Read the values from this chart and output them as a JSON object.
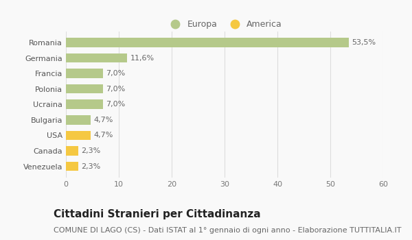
{
  "categories": [
    "Venezuela",
    "Canada",
    "USA",
    "Bulgaria",
    "Ucraina",
    "Polonia",
    "Francia",
    "Germania",
    "Romania"
  ],
  "values": [
    2.3,
    2.3,
    4.7,
    4.7,
    7.0,
    7.0,
    7.0,
    11.6,
    53.5
  ],
  "labels": [
    "2,3%",
    "2,3%",
    "4,7%",
    "4,7%",
    "7,0%",
    "7,0%",
    "7,0%",
    "11,6%",
    "53,5%"
  ],
  "colors": [
    "#f5c842",
    "#f5c842",
    "#f5c842",
    "#b5c98a",
    "#b5c98a",
    "#b5c98a",
    "#b5c98a",
    "#b5c98a",
    "#b5c98a"
  ],
  "legend_europa_color": "#b5c98a",
  "legend_america_color": "#f5c842",
  "xlim": [
    0,
    60
  ],
  "xticks": [
    0,
    10,
    20,
    30,
    40,
    50,
    60
  ],
  "title": "Cittadini Stranieri per Cittadinanza",
  "subtitle": "COMUNE DI LAGO (CS) - Dati ISTAT al 1° gennaio di ogni anno - Elaborazione TUTTITALIA.IT",
  "bg_color": "#f9f9f9",
  "grid_color": "#dddddd",
  "bar_height": 0.6,
  "title_fontsize": 11,
  "subtitle_fontsize": 8,
  "label_fontsize": 8,
  "tick_fontsize": 8,
  "legend_fontsize": 9
}
